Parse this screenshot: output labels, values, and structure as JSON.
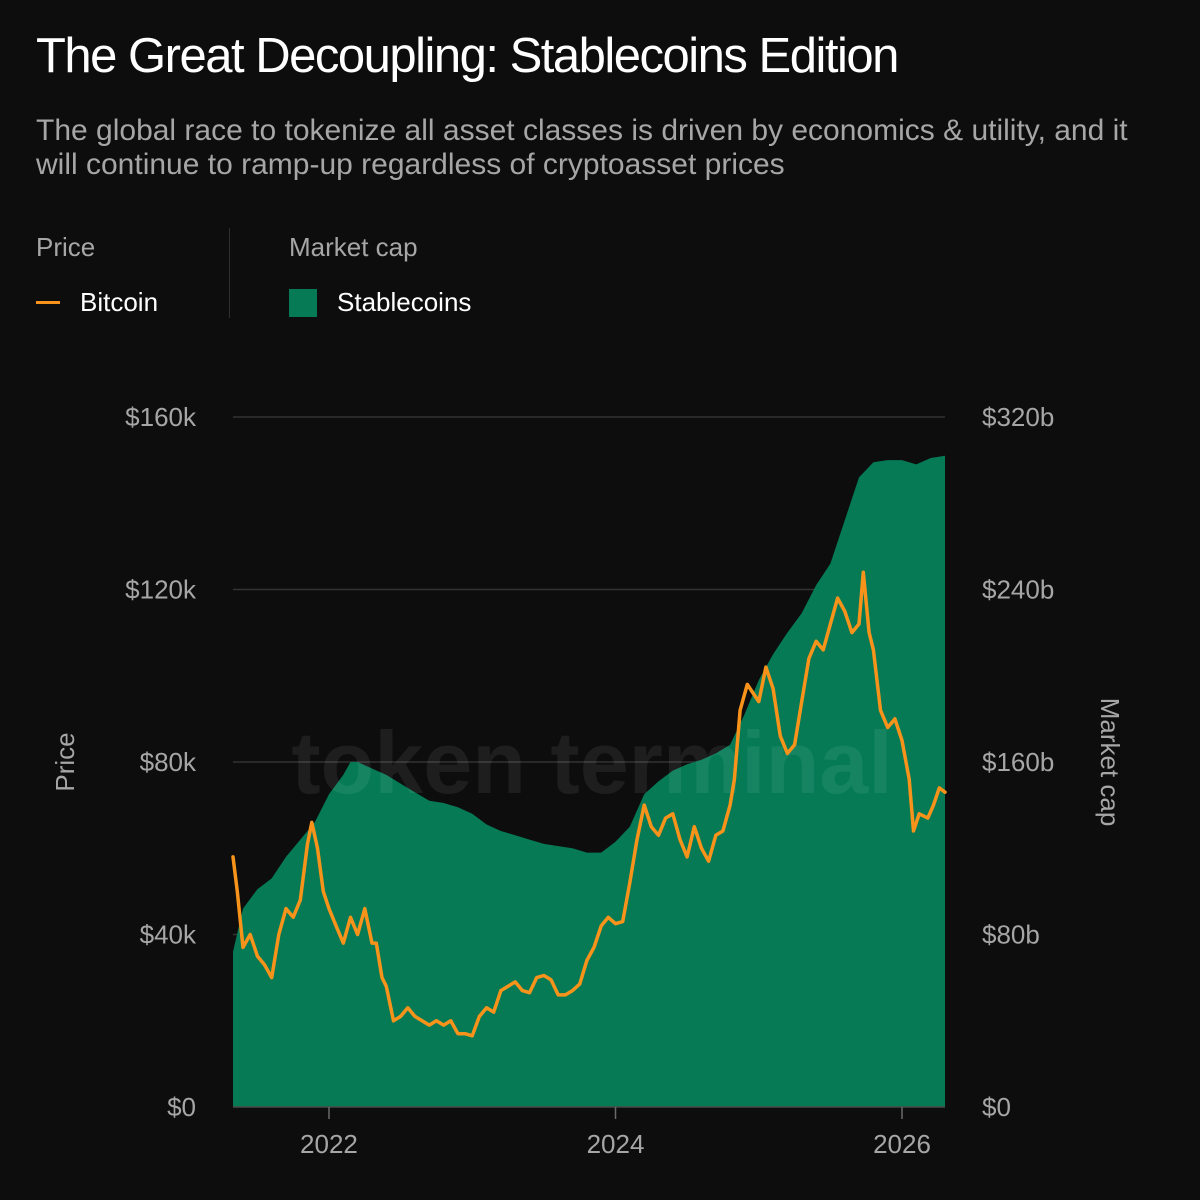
{
  "title": "The Great Decoupling: Stablecoins Edition",
  "subtitle": "The global race to tokenize all asset classes is driven by economics & utility, and it will continue to ramp-up regardless of cryptoasset prices",
  "legend": {
    "price_heading": "Price",
    "mcap_heading": "Market cap",
    "bitcoin_label": "Bitcoin",
    "stablecoins_label": "Stablecoins"
  },
  "watermark": "token terminal",
  "colors": {
    "bitcoin": "#f7931a",
    "stablecoins": "#057a55",
    "grid": "#333333",
    "background": "#0d0d0d"
  },
  "chart_data": {
    "type": "area+line",
    "title": "The Great Decoupling: Stablecoins Edition",
    "x_range": [
      2021.33,
      2026.3
    ],
    "x_ticks": [
      {
        "value": 2022,
        "label": "2022"
      },
      {
        "value": 2024,
        "label": "2024"
      },
      {
        "value": 2026,
        "label": "2026"
      }
    ],
    "left_axis": {
      "label": "Price",
      "range": [
        0,
        160000
      ],
      "ticks": [
        {
          "value": 0,
          "label": "$0"
        },
        {
          "value": 40000,
          "label": "$40k"
        },
        {
          "value": 80000,
          "label": "$80k"
        },
        {
          "value": 120000,
          "label": "$120k"
        },
        {
          "value": 160000,
          "label": "$160k"
        }
      ]
    },
    "right_axis": {
      "label": "Market cap",
      "range": [
        0,
        320
      ],
      "ticks": [
        {
          "value": 0,
          "label": "$0"
        },
        {
          "value": 80,
          "label": "$80b"
        },
        {
          "value": 160,
          "label": "$160b"
        },
        {
          "value": 240,
          "label": "$240b"
        },
        {
          "value": 320,
          "label": "$320b"
        }
      ]
    },
    "series": [
      {
        "name": "Stablecoins",
        "kind": "area",
        "axis": "right",
        "unit": "USD billions",
        "points": [
          [
            2021.33,
            72
          ],
          [
            2021.4,
            92
          ],
          [
            2021.5,
            101
          ],
          [
            2021.6,
            106
          ],
          [
            2021.7,
            116
          ],
          [
            2021.8,
            124
          ],
          [
            2021.9,
            132
          ],
          [
            2022.0,
            145
          ],
          [
            2022.1,
            154
          ],
          [
            2022.15,
            160
          ],
          [
            2022.2,
            160
          ],
          [
            2022.3,
            157
          ],
          [
            2022.4,
            154
          ],
          [
            2022.5,
            150
          ],
          [
            2022.6,
            146
          ],
          [
            2022.7,
            142
          ],
          [
            2022.8,
            141
          ],
          [
            2022.9,
            139
          ],
          [
            2023.0,
            136
          ],
          [
            2023.1,
            131
          ],
          [
            2023.2,
            128
          ],
          [
            2023.3,
            126
          ],
          [
            2023.4,
            124
          ],
          [
            2023.5,
            122
          ],
          [
            2023.6,
            121
          ],
          [
            2023.7,
            120
          ],
          [
            2023.8,
            118
          ],
          [
            2023.9,
            118
          ],
          [
            2024.0,
            123
          ],
          [
            2024.1,
            130
          ],
          [
            2024.2,
            145
          ],
          [
            2024.3,
            151
          ],
          [
            2024.4,
            156
          ],
          [
            2024.5,
            159
          ],
          [
            2024.6,
            161
          ],
          [
            2024.7,
            164
          ],
          [
            2024.8,
            168
          ],
          [
            2024.9,
            182
          ],
          [
            2025.0,
            198
          ],
          [
            2025.1,
            210
          ],
          [
            2025.2,
            220
          ],
          [
            2025.3,
            229
          ],
          [
            2025.4,
            242
          ],
          [
            2025.5,
            252
          ],
          [
            2025.6,
            272
          ],
          [
            2025.7,
            292
          ],
          [
            2025.8,
            299
          ],
          [
            2025.9,
            300
          ],
          [
            2026.0,
            300
          ],
          [
            2026.1,
            298
          ],
          [
            2026.2,
            301
          ],
          [
            2026.3,
            302
          ]
        ]
      },
      {
        "name": "Bitcoin",
        "kind": "line",
        "axis": "left",
        "unit": "USD",
        "points": [
          [
            2021.33,
            58000
          ],
          [
            2021.36,
            50000
          ],
          [
            2021.4,
            37000
          ],
          [
            2021.45,
            40000
          ],
          [
            2021.5,
            35000
          ],
          [
            2021.55,
            33000
          ],
          [
            2021.6,
            30000
          ],
          [
            2021.65,
            40000
          ],
          [
            2021.7,
            46000
          ],
          [
            2021.75,
            44000
          ],
          [
            2021.8,
            48000
          ],
          [
            2021.85,
            61000
          ],
          [
            2021.88,
            66000
          ],
          [
            2021.92,
            60000
          ],
          [
            2021.96,
            50000
          ],
          [
            2022.0,
            46000
          ],
          [
            2022.05,
            42000
          ],
          [
            2022.1,
            38000
          ],
          [
            2022.15,
            44000
          ],
          [
            2022.2,
            40000
          ],
          [
            2022.25,
            46000
          ],
          [
            2022.3,
            38000
          ],
          [
            2022.33,
            38000
          ],
          [
            2022.37,
            30000
          ],
          [
            2022.4,
            28000
          ],
          [
            2022.45,
            20000
          ],
          [
            2022.5,
            21000
          ],
          [
            2022.55,
            23000
          ],
          [
            2022.6,
            21000
          ],
          [
            2022.65,
            20000
          ],
          [
            2022.7,
            19000
          ],
          [
            2022.75,
            20000
          ],
          [
            2022.8,
            19000
          ],
          [
            2022.85,
            20000
          ],
          [
            2022.9,
            17000
          ],
          [
            2022.95,
            17000
          ],
          [
            2023.0,
            16500
          ],
          [
            2023.05,
            21000
          ],
          [
            2023.1,
            23000
          ],
          [
            2023.15,
            22000
          ],
          [
            2023.2,
            27000
          ],
          [
            2023.25,
            28000
          ],
          [
            2023.3,
            29000
          ],
          [
            2023.35,
            27000
          ],
          [
            2023.4,
            26500
          ],
          [
            2023.45,
            30000
          ],
          [
            2023.5,
            30500
          ],
          [
            2023.55,
            29500
          ],
          [
            2023.6,
            26000
          ],
          [
            2023.65,
            26000
          ],
          [
            2023.7,
            27000
          ],
          [
            2023.75,
            28500
          ],
          [
            2023.8,
            34000
          ],
          [
            2023.85,
            37000
          ],
          [
            2023.9,
            42000
          ],
          [
            2023.95,
            44000
          ],
          [
            2024.0,
            42500
          ],
          [
            2024.05,
            43000
          ],
          [
            2024.1,
            52000
          ],
          [
            2024.15,
            62000
          ],
          [
            2024.2,
            70000
          ],
          [
            2024.25,
            65000
          ],
          [
            2024.3,
            63000
          ],
          [
            2024.35,
            67000
          ],
          [
            2024.4,
            68000
          ],
          [
            2024.45,
            62000
          ],
          [
            2024.5,
            58000
          ],
          [
            2024.55,
            65000
          ],
          [
            2024.6,
            60000
          ],
          [
            2024.65,
            57000
          ],
          [
            2024.7,
            63000
          ],
          [
            2024.75,
            64000
          ],
          [
            2024.8,
            70000
          ],
          [
            2024.83,
            76000
          ],
          [
            2024.87,
            92000
          ],
          [
            2024.92,
            98000
          ],
          [
            2024.96,
            96000
          ],
          [
            2025.0,
            94000
          ],
          [
            2025.05,
            102000
          ],
          [
            2025.1,
            97000
          ],
          [
            2025.15,
            86000
          ],
          [
            2025.2,
            82000
          ],
          [
            2025.25,
            84000
          ],
          [
            2025.3,
            94000
          ],
          [
            2025.35,
            104000
          ],
          [
            2025.4,
            108000
          ],
          [
            2025.45,
            106000
          ],
          [
            2025.5,
            112000
          ],
          [
            2025.55,
            118000
          ],
          [
            2025.6,
            115000
          ],
          [
            2025.65,
            110000
          ],
          [
            2025.7,
            112000
          ],
          [
            2025.73,
            124000
          ],
          [
            2025.77,
            110000
          ],
          [
            2025.8,
            106000
          ],
          [
            2025.85,
            92000
          ],
          [
            2025.9,
            88000
          ],
          [
            2025.95,
            90000
          ],
          [
            2026.0,
            85000
          ],
          [
            2026.05,
            76000
          ],
          [
            2026.08,
            64000
          ],
          [
            2026.12,
            68000
          ],
          [
            2026.18,
            67000
          ],
          [
            2026.22,
            70000
          ],
          [
            2026.26,
            74000
          ],
          [
            2026.3,
            73000
          ]
        ]
      }
    ]
  }
}
